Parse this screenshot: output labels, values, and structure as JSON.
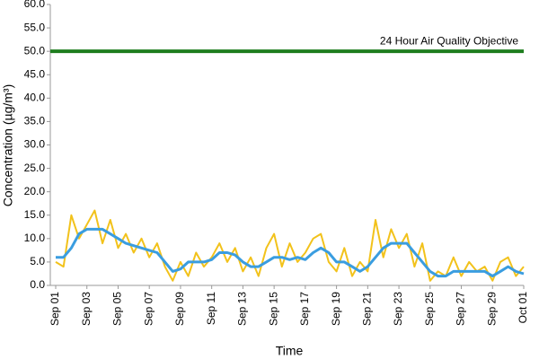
{
  "chart_data": {
    "type": "line",
    "x_label": "Time",
    "y_label": "Concentration (µg/m³)",
    "x": [
      0,
      0.5,
      1,
      1.5,
      2,
      2.5,
      3,
      3.5,
      4,
      4.5,
      5,
      5.5,
      6,
      6.5,
      7,
      7.5,
      8,
      8.5,
      9,
      9.5,
      10,
      10.5,
      11,
      11.5,
      12,
      12.5,
      13,
      13.5,
      14,
      14.5,
      15,
      15.5,
      16,
      16.5,
      17,
      17.5,
      18,
      18.5,
      19,
      19.5,
      20,
      20.5,
      21,
      21.5,
      22,
      22.5,
      23,
      23.5,
      24,
      24.5,
      25,
      25.5,
      26,
      26.5,
      27,
      27.5,
      28,
      28.5,
      29,
      29.5,
      30
    ],
    "series": [
      {
        "color": "#f2c21b",
        "width": 2,
        "values": [
          5,
          4,
          15,
          10,
          13,
          16,
          9,
          14,
          8,
          11,
          7,
          10,
          6,
          9,
          4,
          1,
          5,
          2,
          7,
          4,
          6,
          9,
          5,
          8,
          3,
          6,
          2,
          8,
          11,
          4,
          9,
          5,
          7,
          10,
          11,
          5,
          3,
          8,
          2,
          5,
          3,
          14,
          6,
          12,
          8,
          11,
          4,
          9,
          1,
          3,
          2,
          6,
          2,
          5,
          3,
          4,
          1,
          5,
          6,
          2,
          4
        ]
      },
      {
        "color": "#3a9de0",
        "width": 3,
        "values": [
          6,
          6,
          8,
          11,
          12,
          12,
          12,
          11,
          10,
          9,
          8.5,
          8,
          7.5,
          7,
          5,
          3,
          3.5,
          5,
          5,
          5,
          5.5,
          7,
          7,
          6.5,
          5,
          4,
          4,
          5,
          6,
          6,
          5.5,
          6,
          5.5,
          7,
          8,
          7,
          5,
          5,
          4,
          3,
          4,
          6,
          8,
          9,
          9,
          9,
          7,
          5,
          3,
          2,
          2,
          3,
          3,
          3,
          3,
          3,
          2,
          3,
          4,
          3,
          2.5
        ]
      }
    ],
    "threshold": {
      "value": 50,
      "label": "24 Hour Air Quality Objective",
      "color": "#1e7d1e"
    },
    "xlim": [
      0,
      30
    ],
    "xticks": [
      {
        "value": 0,
        "label": "Sep 01"
      },
      {
        "value": 2,
        "label": "Sep 03"
      },
      {
        "value": 4,
        "label": "Sep 05"
      },
      {
        "value": 6,
        "label": "Sep 07"
      },
      {
        "value": 8,
        "label": "Sep 09"
      },
      {
        "value": 10,
        "label": "Sep 11"
      },
      {
        "value": 12,
        "label": "Sep 13"
      },
      {
        "value": 14,
        "label": "Sep 15"
      },
      {
        "value": 16,
        "label": "Sep 17"
      },
      {
        "value": 18,
        "label": "Sep 19"
      },
      {
        "value": 20,
        "label": "Sep 21"
      },
      {
        "value": 22,
        "label": "Sep 23"
      },
      {
        "value": 24,
        "label": "Sep 25"
      },
      {
        "value": 26,
        "label": "Sep 27"
      },
      {
        "value": 28,
        "label": "Sep 29"
      },
      {
        "value": 30,
        "label": "Oct 01"
      }
    ],
    "ylim": [
      0,
      60
    ],
    "yticks": [
      {
        "value": 0,
        "label": "0.0"
      },
      {
        "value": 5,
        "label": "5.0"
      },
      {
        "value": 10,
        "label": "10.0"
      },
      {
        "value": 15,
        "label": "15.0"
      },
      {
        "value": 20,
        "label": "20.0"
      },
      {
        "value": 25,
        "label": "25.0"
      },
      {
        "value": 30,
        "label": "30.0"
      },
      {
        "value": 35,
        "label": "35.0"
      },
      {
        "value": 40,
        "label": "40.0"
      },
      {
        "value": 45,
        "label": "45.0"
      },
      {
        "value": 50,
        "label": "50.0"
      },
      {
        "value": 55,
        "label": "55.0"
      },
      {
        "value": 60,
        "label": "60.0"
      }
    ],
    "grid": false
  }
}
